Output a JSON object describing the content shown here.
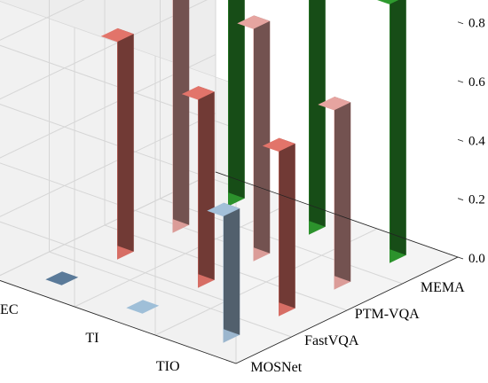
{
  "chart_data": {
    "type": "bar3d",
    "x_categories": [
      "MOSNet",
      "FastVQA",
      "PTM-VQA",
      "MEMA"
    ],
    "y_categories": [
      "NEC",
      "TI",
      "TIO"
    ],
    "z_ticks": [
      "0.0",
      "0.2",
      "0.4",
      "0.6",
      "0.8"
    ],
    "zlim": [
      0,
      0.95
    ],
    "grid": true,
    "bars": [
      {
        "x": "MOSNet",
        "y": "NEC",
        "value": 0.0,
        "color": "#5a7a99"
      },
      {
        "x": "MOSNet",
        "y": "TI",
        "value": 0.0,
        "color": "#9fbfd8"
      },
      {
        "x": "MOSNet",
        "y": "TIO",
        "value": 0.43,
        "color": "#a3c0d9"
      },
      {
        "x": "FastVQA",
        "y": "NEC",
        "value": 0.74,
        "color": "#e2746a"
      },
      {
        "x": "FastVQA",
        "y": "TI",
        "value": 0.64,
        "color": "#e2746a"
      },
      {
        "x": "FastVQA",
        "y": "TIO",
        "value": 0.56,
        "color": "#e2746a"
      },
      {
        "x": "PTM-VQA",
        "y": "NEC",
        "value": 0.8,
        "color": "#e6a4a0"
      },
      {
        "x": "PTM-VQA",
        "y": "TI",
        "value": 0.79,
        "color": "#e6a4a0"
      },
      {
        "x": "PTM-VQA",
        "y": "TIO",
        "value": 0.61,
        "color": "#e6a4a0"
      },
      {
        "x": "MEMA",
        "y": "NEC",
        "value": 0.89,
        "color": "#2e9a2e"
      },
      {
        "x": "MEMA",
        "y": "TI",
        "value": 0.9,
        "color": "#2e9a2e"
      },
      {
        "x": "MEMA",
        "y": "TIO",
        "value": 0.88,
        "color": "#2e9a2e"
      }
    ]
  }
}
